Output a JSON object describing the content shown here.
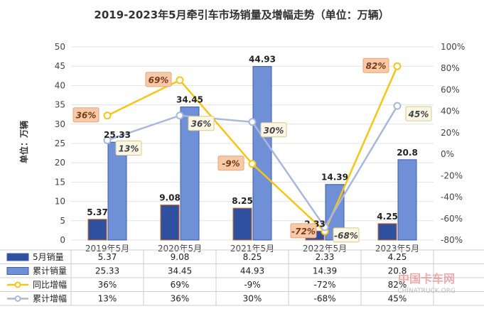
{
  "chart_data": {
    "type": "bar",
    "title": "2019-2023年5月牵引车市场销量及增幅走势（单位：万辆）",
    "ylabel": "单位：万辆",
    "ylim": [
      0,
      50
    ],
    "y_ticks": [
      0,
      5,
      10,
      15,
      20,
      25,
      30,
      35,
      40,
      45,
      50
    ],
    "y2lim": [
      -80,
      100
    ],
    "y2_ticks": [
      "-80%",
      "-60%",
      "-40%",
      "-20%",
      "0%",
      "20%",
      "40%",
      "60%",
      "80%",
      "100%"
    ],
    "y2_tick_values": [
      -80,
      -60,
      -40,
      -20,
      0,
      20,
      40,
      60,
      80,
      100
    ],
    "categories": [
      "2019年5月",
      "2020年5月",
      "2021年5月",
      "2022年5月",
      "2023年5月"
    ],
    "series": [
      {
        "name": "5月销量",
        "kind": "bar",
        "axis": "left",
        "color": "#2f4f9f",
        "values": [
          5.37,
          9.08,
          8.25,
          2.33,
          4.25
        ],
        "labels": [
          "5.37",
          "9.08",
          "8.25",
          "2.33",
          "4.25"
        ],
        "table_row": [
          "5.37",
          "9.08",
          "8.25",
          "2.33",
          "4.25"
        ]
      },
      {
        "name": "累计销量",
        "kind": "bar",
        "axis": "left",
        "color": "#6f8fd6",
        "values": [
          25.33,
          34.45,
          44.93,
          14.39,
          20.8
        ],
        "labels": [
          "25.33",
          "34.45",
          "44.93",
          "14.39",
          "20.8"
        ],
        "table_row": [
          "25.33",
          "34.45",
          "44.93",
          "14.39",
          "20.8"
        ]
      },
      {
        "name": "同比增幅",
        "kind": "line",
        "axis": "right",
        "color": "#f5c518",
        "values": [
          36,
          69,
          -9,
          -72,
          82
        ],
        "labels": [
          "36%",
          "69%",
          "-9%",
          "-72%",
          "82%"
        ],
        "table_row": [
          "36%",
          "69%",
          "-9%",
          "-72%",
          "82%"
        ]
      },
      {
        "name": "累计增幅",
        "kind": "line",
        "axis": "right",
        "color": "#a9b8da",
        "values": [
          13,
          36,
          30,
          -68,
          45
        ],
        "labels": [
          "13%",
          "36%",
          "30%",
          "-68%",
          "45%"
        ],
        "table_row": [
          "13%",
          "36%",
          "30%",
          "-68%",
          "45%"
        ]
      }
    ],
    "grid": true,
    "legend": "data table"
  },
  "watermark": {
    "cn": "中国卡车网",
    "en": "CHINATRUCK.ORG"
  }
}
